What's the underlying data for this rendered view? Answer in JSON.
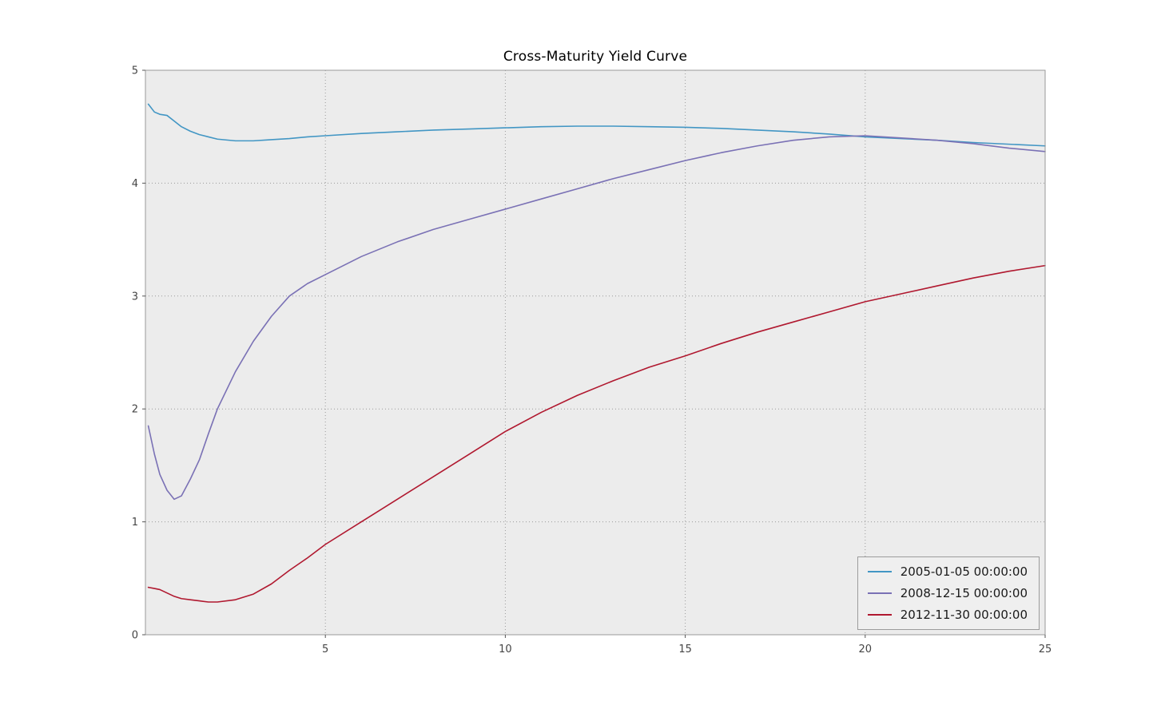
{
  "chart_data": {
    "type": "line",
    "title": "Cross-Maturity Yield Curve",
    "xlabel": "",
    "ylabel": "",
    "xlim": [
      0,
      25
    ],
    "ylim": [
      0,
      5
    ],
    "xticks": [
      5,
      10,
      15,
      20,
      25
    ],
    "yticks": [
      0,
      1,
      2,
      3,
      4,
      5
    ],
    "grid": "dotted",
    "legend_position": "lower right",
    "plot_bg_color": "#ececec",
    "grid_color": "#9a9a9a",
    "spine_color": "#999999",
    "tick_label_color": "#444444",
    "x": [
      0.08,
      0.25,
      0.4,
      0.6,
      0.8,
      1.0,
      1.25,
      1.5,
      1.75,
      2,
      2.5,
      3,
      3.5,
      4,
      4.5,
      5,
      6,
      7,
      8,
      9,
      10,
      11,
      12,
      13,
      14,
      15,
      16,
      17,
      18,
      19,
      20,
      21,
      22,
      23,
      24,
      25
    ],
    "series": [
      {
        "name": "2005-01-05 00:00:00",
        "color": "#4296c4",
        "values": [
          4.7,
          4.63,
          4.61,
          4.6,
          4.55,
          4.5,
          4.46,
          4.43,
          4.41,
          4.39,
          4.375,
          4.375,
          4.385,
          4.395,
          4.41,
          4.42,
          4.44,
          4.455,
          4.47,
          4.48,
          4.49,
          4.5,
          4.505,
          4.505,
          4.5,
          4.495,
          4.485,
          4.47,
          4.455,
          4.435,
          4.41,
          4.395,
          4.38,
          4.36,
          4.345,
          4.33
        ]
      },
      {
        "name": "2008-12-15 00:00:00",
        "color": "#7a71b5",
        "values": [
          1.85,
          1.6,
          1.42,
          1.28,
          1.2,
          1.23,
          1.38,
          1.55,
          1.78,
          2.0,
          2.33,
          2.6,
          2.82,
          3.0,
          3.11,
          3.19,
          3.35,
          3.48,
          3.59,
          3.68,
          3.77,
          3.86,
          3.95,
          4.04,
          4.12,
          4.2,
          4.27,
          4.33,
          4.38,
          4.41,
          4.42,
          4.4,
          4.38,
          4.35,
          4.31,
          4.28
        ]
      },
      {
        "name": "2012-11-30 00:00:00",
        "color": "#b0182f",
        "values": [
          0.42,
          0.41,
          0.4,
          0.37,
          0.34,
          0.32,
          0.31,
          0.3,
          0.29,
          0.29,
          0.31,
          0.36,
          0.45,
          0.57,
          0.68,
          0.8,
          1.0,
          1.2,
          1.4,
          1.6,
          1.8,
          1.97,
          2.12,
          2.25,
          2.37,
          2.47,
          2.58,
          2.68,
          2.77,
          2.86,
          2.95,
          3.02,
          3.09,
          3.16,
          3.22,
          3.27
        ]
      }
    ]
  }
}
